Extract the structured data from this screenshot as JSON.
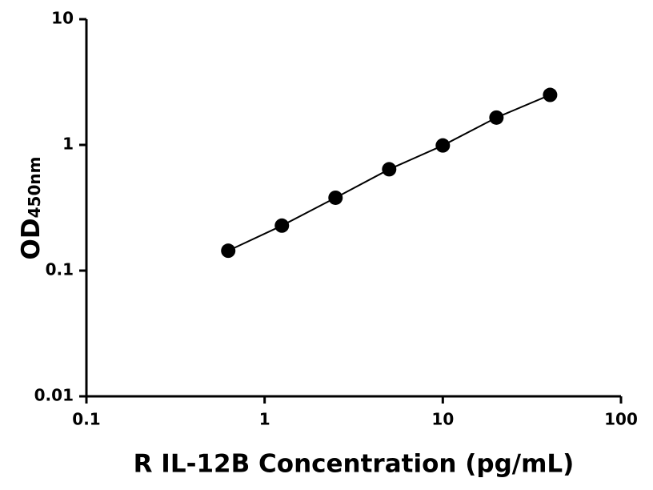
{
  "chart_data": {
    "type": "scatter",
    "x_label": "R IL-12B Concentration (pg/mL)",
    "y_label": "OD",
    "y_label_subscript": "450nm",
    "x": [
      0.625,
      1.25,
      2.5,
      5,
      10,
      20,
      40
    ],
    "series": [
      {
        "color": "#000000",
        "values": [
          0.144,
          0.228,
          0.38,
          0.64,
          0.99,
          1.65,
          2.5
        ]
      }
    ],
    "connect_points": true,
    "x_log": true,
    "y_log": true,
    "xlim": [
      0.1,
      100
    ],
    "ylim": [
      0.01,
      10
    ],
    "xticks": [
      0.1,
      1,
      10,
      100
    ],
    "yticks": [
      0.01,
      0.1,
      1,
      10
    ]
  }
}
